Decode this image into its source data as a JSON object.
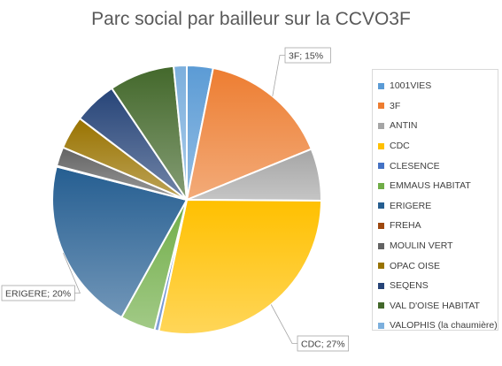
{
  "chart_data": {
    "type": "pie",
    "title": "Parc social par bailleur sur la CCVO3F",
    "legend_position": "right",
    "slices": [
      {
        "label": "1001VIES",
        "value": 3,
        "color": "#5b9bd5"
      },
      {
        "label": "3F",
        "value": 15,
        "color": "#ed7d31"
      },
      {
        "label": "ANTIN",
        "value": 6,
        "color": "#a5a5a5"
      },
      {
        "label": "CDC",
        "value": 27,
        "color": "#ffc000"
      },
      {
        "label": "CLESENCE",
        "value": 0.5,
        "color": "#4472c4"
      },
      {
        "label": "EMMAUS HABITAT",
        "value": 4,
        "color": "#70ad47"
      },
      {
        "label": "ERIGERE",
        "value": 20,
        "color": "#255e91"
      },
      {
        "label": "FREHA",
        "value": 0.1,
        "color": "#9e480e"
      },
      {
        "label": "MOULIN VERT",
        "value": 2.2,
        "color": "#636363"
      },
      {
        "label": "OPAC OISE",
        "value": 3.8,
        "color": "#997300"
      },
      {
        "label": "SEQENS",
        "value": 5,
        "color": "#264478"
      },
      {
        "label": "VAL D'OISE HABITAT",
        "value": 7.5,
        "color": "#43682b"
      },
      {
        "label": "VALOPHIS (la chaumière)",
        "value": 1.5,
        "color": "#7cafdd"
      }
    ],
    "data_labels": [
      {
        "label": "3F; 15%",
        "slice": "3F"
      },
      {
        "label": "CDC; 27%",
        "slice": "CDC"
      },
      {
        "label": "ERIGERE; 20%",
        "slice": "ERIGERE"
      }
    ]
  }
}
